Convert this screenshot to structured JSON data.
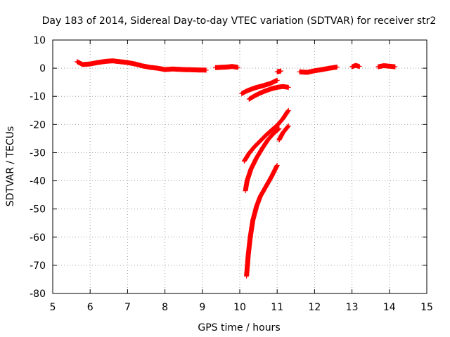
{
  "chart_data": {
    "type": "scatter",
    "title": "Day 183 of 2014, Sidereal Day-to-day VTEC variation (SDTVAR) for receiver str2",
    "xlabel": "GPS time / hours",
    "ylabel": "SDTVAR / TECUs",
    "xlim": [
      5,
      15
    ],
    "ylim": [
      -80,
      10
    ],
    "xticks": [
      5,
      6,
      7,
      8,
      9,
      10,
      11,
      12,
      13,
      14,
      15
    ],
    "yticks": [
      10,
      0,
      -10,
      -20,
      -30,
      -40,
      -50,
      -60,
      -70,
      -80
    ],
    "grid": true,
    "marker": "+",
    "series": [
      {
        "name": "SDTVAR",
        "color": "#ff0000",
        "segments": [
          [
            [
              5.65,
              2.3
            ],
            [
              5.8,
              1.3
            ],
            [
              6.0,
              1.5
            ],
            [
              6.2,
              2.0
            ],
            [
              6.4,
              2.4
            ],
            [
              6.6,
              2.6
            ],
            [
              6.8,
              2.3
            ],
            [
              7.0,
              2.0
            ],
            [
              7.2,
              1.5
            ],
            [
              7.4,
              0.8
            ],
            [
              7.6,
              0.3
            ],
            [
              7.8,
              0.0
            ],
            [
              8.0,
              -0.5
            ],
            [
              8.2,
              -0.3
            ],
            [
              8.5,
              -0.5
            ],
            [
              8.8,
              -0.6
            ],
            [
              9.1,
              -0.7
            ]
          ],
          [
            [
              9.35,
              0.2
            ],
            [
              9.5,
              0.3
            ],
            [
              9.65,
              0.4
            ],
            [
              9.8,
              0.6
            ],
            [
              9.95,
              0.3
            ]
          ],
          [
            [
              10.05,
              -9.0
            ],
            [
              10.2,
              -8.0
            ],
            [
              10.4,
              -7.0
            ],
            [
              10.6,
              -6.3
            ],
            [
              10.8,
              -5.5
            ],
            [
              11.0,
              -4.3
            ]
          ],
          [
            [
              10.25,
              -11.0
            ],
            [
              10.4,
              -9.8
            ],
            [
              10.55,
              -8.8
            ],
            [
              10.7,
              -8.0
            ],
            [
              10.85,
              -7.3
            ],
            [
              11.0,
              -6.8
            ],
            [
              11.15,
              -6.5
            ],
            [
              11.3,
              -6.8
            ]
          ],
          [
            [
              11.0,
              -1.3
            ],
            [
              11.1,
              -1.0
            ]
          ],
          [
            [
              10.12,
              -33.0
            ],
            [
              10.25,
              -30.2
            ],
            [
              10.4,
              -27.8
            ],
            [
              10.55,
              -25.8
            ],
            [
              10.7,
              -23.8
            ],
            [
              10.85,
              -22.0
            ],
            [
              11.0,
              -20.3
            ],
            [
              11.15,
              -18.0
            ],
            [
              11.3,
              -15.0
            ]
          ],
          [
            [
              10.15,
              -43.5
            ],
            [
              10.2,
              -39.8
            ],
            [
              10.3,
              -35.8
            ],
            [
              10.45,
              -31.8
            ],
            [
              10.6,
              -28.5
            ],
            [
              10.75,
              -25.5
            ],
            [
              10.9,
              -23.2
            ],
            [
              11.05,
              -21.5
            ]
          ],
          [
            [
              11.05,
              -25.5
            ],
            [
              11.15,
              -23.0
            ],
            [
              11.3,
              -20.5
            ]
          ],
          [
            [
              10.18,
              -73.8
            ],
            [
              10.23,
              -66.0
            ],
            [
              10.28,
              -60.0
            ],
            [
              10.35,
              -54.0
            ],
            [
              10.45,
              -49.0
            ],
            [
              10.55,
              -45.5
            ],
            [
              10.7,
              -42.0
            ],
            [
              10.85,
              -38.5
            ],
            [
              11.0,
              -34.5
            ]
          ],
          [
            [
              11.6,
              -1.3
            ],
            [
              11.8,
              -1.5
            ],
            [
              12.0,
              -0.9
            ],
            [
              12.2,
              -0.5
            ],
            [
              12.4,
              0.0
            ],
            [
              12.6,
              0.4
            ]
          ],
          [
            [
              13.0,
              0.5
            ],
            [
              13.1,
              1.0
            ],
            [
              13.2,
              0.6
            ]
          ],
          [
            [
              13.7,
              0.5
            ],
            [
              13.85,
              0.9
            ],
            [
              14.0,
              0.7
            ],
            [
              14.15,
              0.5
            ]
          ]
        ]
      }
    ]
  }
}
